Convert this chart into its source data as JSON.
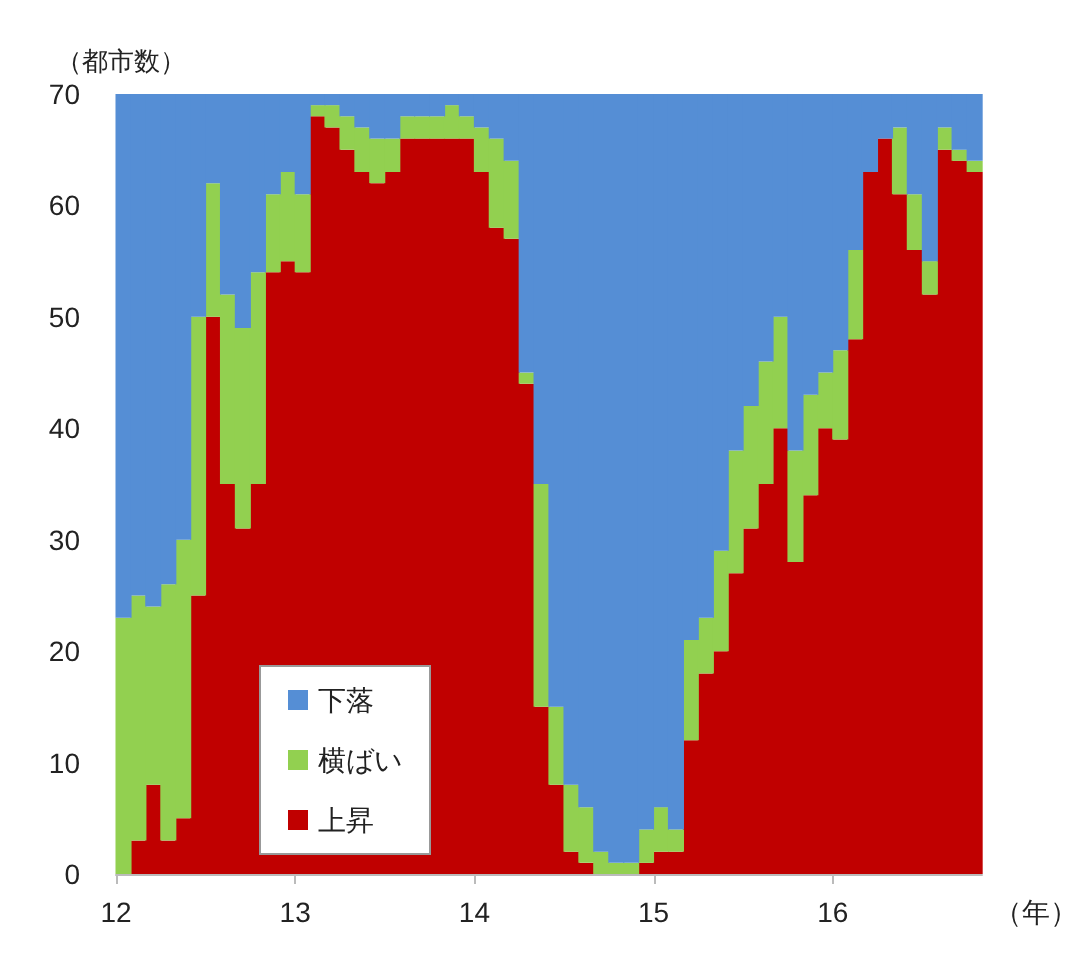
{
  "chart_data": {
    "type": "bar",
    "stacked": true,
    "xlabel": "（年）",
    "ylabel": "（都市数）",
    "x": [
      12.042,
      12.125,
      12.208,
      12.292,
      12.375,
      12.458,
      12.542,
      12.625,
      12.708,
      12.792,
      12.875,
      12.958,
      13.042,
      13.125,
      13.208,
      13.292,
      13.375,
      13.458,
      13.542,
      13.625,
      13.708,
      13.792,
      13.875,
      13.958,
      14.042,
      14.125,
      14.208,
      14.292,
      14.375,
      14.458,
      14.542,
      14.625,
      14.708,
      14.792,
      14.875,
      14.958,
      15.042,
      15.125,
      15.208,
      15.292,
      15.375,
      15.458,
      15.542,
      15.625,
      15.708,
      15.792,
      15.875,
      15.958,
      16.042,
      16.125,
      16.208,
      16.292,
      16.375,
      16.458,
      16.542,
      16.625,
      16.708,
      16.792
    ],
    "xlim": [
      12,
      16.833
    ],
    "xticks": [
      12,
      13,
      14,
      15,
      16
    ],
    "ylim": [
      0,
      70
    ],
    "yticks": [
      0,
      10,
      20,
      30,
      40,
      50,
      60,
      70
    ],
    "legend": "bottom left",
    "series": [
      {
        "name": "上昇",
        "color": "#c00000",
        "values": [
          0,
          3,
          8,
          3,
          5,
          25,
          50,
          35,
          31,
          35,
          54,
          55,
          54,
          68,
          67,
          65,
          63,
          62,
          63,
          66,
          66,
          66,
          66,
          66,
          63,
          58,
          57,
          44,
          15,
          8,
          2,
          1,
          0,
          0,
          0,
          1,
          2,
          2,
          12,
          18,
          20,
          27,
          31,
          35,
          40,
          28,
          34,
          40,
          39,
          48,
          63,
          66,
          61,
          56,
          52,
          65,
          64,
          63
        ]
      },
      {
        "name": "横ばい",
        "color": "#92d050",
        "values": [
          23,
          22,
          16,
          23,
          25,
          25,
          12,
          17,
          18,
          19,
          7,
          8,
          7,
          1,
          2,
          3,
          4,
          4,
          3,
          2,
          2,
          2,
          3,
          2,
          4,
          8,
          7,
          1,
          20,
          7,
          6,
          5,
          2,
          1,
          1,
          3,
          4,
          2,
          9,
          5,
          9,
          11,
          11,
          11,
          10,
          10,
          9,
          5,
          8,
          8,
          0,
          0,
          6,
          5,
          3,
          2,
          1,
          1
        ]
      },
      {
        "name": "下落",
        "color": "#558ed5",
        "values": [
          47,
          45,
          46,
          44,
          40,
          20,
          8,
          18,
          21,
          16,
          9,
          7,
          9,
          1,
          1,
          2,
          3,
          4,
          4,
          2,
          2,
          2,
          1,
          2,
          3,
          4,
          6,
          25,
          35,
          55,
          62,
          64,
          68,
          69,
          69,
          66,
          64,
          66,
          49,
          47,
          41,
          32,
          28,
          24,
          20,
          32,
          27,
          25,
          23,
          14,
          7,
          4,
          3,
          9,
          15,
          3,
          5,
          6
        ]
      }
    ]
  }
}
